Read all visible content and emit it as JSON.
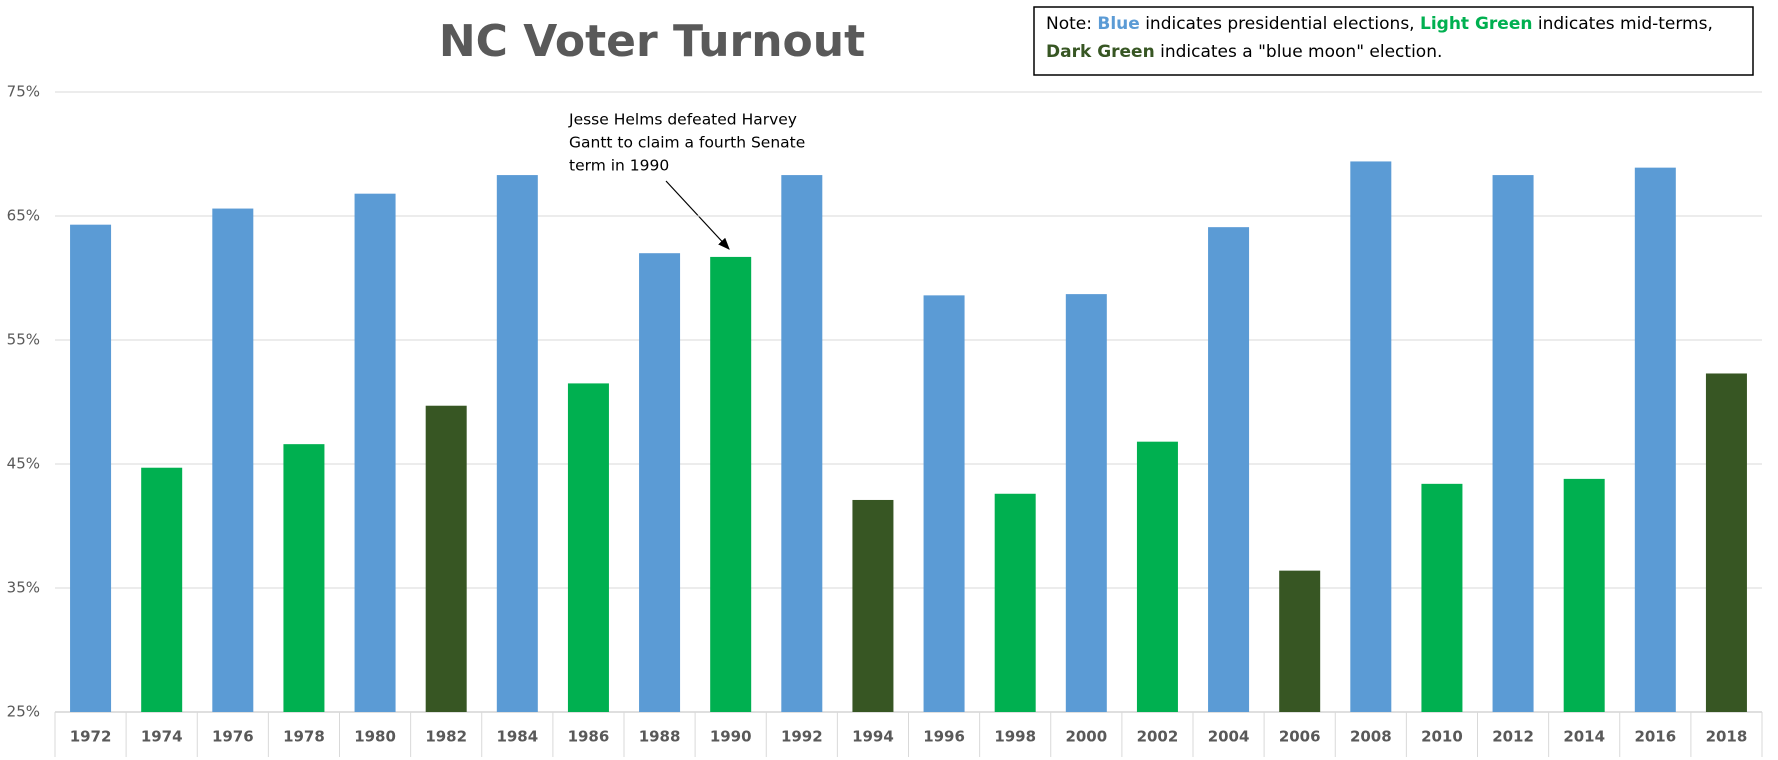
{
  "chart_data": {
    "type": "bar",
    "title": "NC Voter Turnout",
    "categories": [
      "1972",
      "1974",
      "1976",
      "1978",
      "1980",
      "1982",
      "1984",
      "1986",
      "1988",
      "1990",
      "1992",
      "1994",
      "1996",
      "1998",
      "2000",
      "2002",
      "2004",
      "2006",
      "2008",
      "2010",
      "2012",
      "2014",
      "2016",
      "2018"
    ],
    "values": [
      64.3,
      44.7,
      65.6,
      46.6,
      66.8,
      49.7,
      68.3,
      51.5,
      62.0,
      61.7,
      68.3,
      42.1,
      58.6,
      42.6,
      58.7,
      46.8,
      64.1,
      36.4,
      69.4,
      43.4,
      68.3,
      43.8,
      68.9,
      52.3
    ],
    "colors": [
      "#5b9bd5",
      "#00b050",
      "#5b9bd5",
      "#00b050",
      "#5b9bd5",
      "#375623",
      "#5b9bd5",
      "#00b050",
      "#5b9bd5",
      "#00b050",
      "#5b9bd5",
      "#375623",
      "#5b9bd5",
      "#00b050",
      "#5b9bd5",
      "#00b050",
      "#5b9bd5",
      "#375623",
      "#5b9bd5",
      "#00b050",
      "#5b9bd5",
      "#00b050",
      "#5b9bd5",
      "#375623"
    ],
    "ylim": [
      25,
      75
    ],
    "yticks": [
      {
        "value": 25,
        "label": "25%"
      },
      {
        "value": 35,
        "label": "35%"
      },
      {
        "value": 45,
        "label": "45%"
      },
      {
        "value": 55,
        "label": "55%"
      },
      {
        "value": 65,
        "label": "65%"
      },
      {
        "value": 75,
        "label": "75%"
      }
    ],
    "grid": true,
    "note": {
      "lines": [
        [
          {
            "text": "Note: "
          },
          {
            "text": "Blue",
            "color": "#5b9bd5"
          },
          {
            "text": " indicates presidential elections, "
          },
          {
            "text": "Light Green",
            "color": "#00b050"
          },
          {
            "text": " indicates mid-terms,"
          }
        ],
        [
          {
            "text": "Dark Green",
            "color": "#375623"
          },
          {
            "text": " indicates a \"blue moon\" election."
          }
        ]
      ]
    },
    "annotation": {
      "lines": [
        "Jesse Helms defeated Harvey",
        "Gantt to claim a fourth Senate",
        "term in 1990"
      ]
    }
  }
}
